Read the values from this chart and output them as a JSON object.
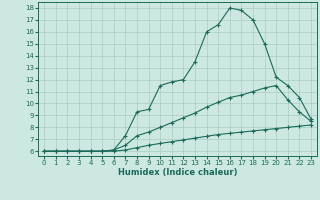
{
  "xlabel": "Humidex (Indice chaleur)",
  "bg_color": "#cce8e0",
  "grid_color": "#aaccc4",
  "line_color": "#1a6b5a",
  "xlim": [
    -0.5,
    23.5
  ],
  "ylim": [
    5.6,
    18.5
  ],
  "yticks": [
    6,
    7,
    8,
    9,
    10,
    11,
    12,
    13,
    14,
    15,
    16,
    17,
    18
  ],
  "xticks": [
    0,
    1,
    2,
    3,
    4,
    5,
    6,
    7,
    8,
    9,
    10,
    11,
    12,
    13,
    14,
    15,
    16,
    17,
    18,
    19,
    20,
    21,
    22,
    23
  ],
  "curve1_x": [
    0,
    1,
    2,
    3,
    4,
    5,
    6,
    7,
    8,
    9,
    10,
    11,
    12,
    13,
    14,
    15,
    16,
    17,
    18,
    19,
    20,
    21,
    22,
    23
  ],
  "curve1_y": [
    6.0,
    6.0,
    6.0,
    6.0,
    6.0,
    6.0,
    6.1,
    7.3,
    9.3,
    9.5,
    11.5,
    11.8,
    12.0,
    13.5,
    16.0,
    16.6,
    18.0,
    17.8,
    17.0,
    15.0,
    12.2,
    11.5,
    10.5,
    8.7
  ],
  "curve2_x": [
    0,
    1,
    2,
    3,
    4,
    5,
    6,
    7,
    8,
    9,
    10,
    11,
    12,
    13,
    14,
    15,
    16,
    17,
    18,
    19,
    20,
    21,
    22,
    23
  ],
  "curve2_y": [
    6.0,
    6.0,
    6.0,
    6.0,
    6.0,
    6.0,
    6.1,
    6.5,
    7.3,
    7.6,
    8.0,
    8.4,
    8.8,
    9.2,
    9.7,
    10.1,
    10.5,
    10.7,
    11.0,
    11.3,
    11.5,
    10.3,
    9.3,
    8.5
  ],
  "curve3_x": [
    0,
    1,
    2,
    3,
    4,
    5,
    6,
    7,
    8,
    9,
    10,
    11,
    12,
    13,
    14,
    15,
    16,
    17,
    18,
    19,
    20,
    21,
    22,
    23
  ],
  "curve3_y": [
    6.0,
    6.0,
    6.0,
    6.0,
    6.0,
    6.0,
    6.0,
    6.1,
    6.3,
    6.5,
    6.65,
    6.8,
    6.95,
    7.1,
    7.25,
    7.4,
    7.5,
    7.6,
    7.7,
    7.8,
    7.9,
    8.0,
    8.1,
    8.2
  ]
}
